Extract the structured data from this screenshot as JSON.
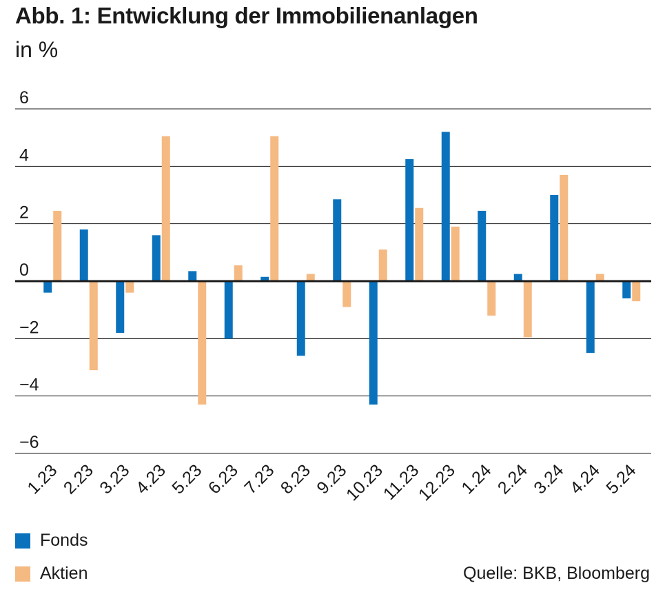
{
  "title": "Abb. 1: Entwicklung der Immobilienanlagen",
  "subtitle": "in %",
  "source": "Quelle: BKB, Bloomberg",
  "colors": {
    "fonds": "#0a72bd",
    "aktien": "#f5b982",
    "grid": "#1a1a1a"
  },
  "chart_data": {
    "type": "bar",
    "categories": [
      "1.23",
      "2.23",
      "3.23",
      "4.23",
      "5.23",
      "6.23",
      "7.23",
      "8.23",
      "9.23",
      "10.23",
      "11.23",
      "12.23",
      "1.24",
      "2.24",
      "3.24",
      "4.24",
      "5.24"
    ],
    "series": [
      {
        "name": "Fonds",
        "values": [
          -0.4,
          1.8,
          -1.8,
          1.6,
          0.35,
          -2.0,
          0.15,
          -2.6,
          2.85,
          -4.3,
          4.25,
          5.2,
          2.45,
          0.25,
          3.0,
          -2.5,
          -0.6
        ]
      },
      {
        "name": "Aktien",
        "values": [
          2.45,
          -3.1,
          -0.4,
          5.05,
          -4.3,
          0.55,
          5.05,
          0.25,
          -0.9,
          1.1,
          2.55,
          1.9,
          -1.2,
          -1.95,
          3.7,
          0.25,
          -0.7
        ]
      }
    ],
    "yticks": [
      6,
      4,
      2,
      0,
      -2,
      -4,
      -6
    ],
    "ytick_labels": [
      "6",
      "4",
      "2",
      "0",
      "−2",
      "−4",
      "−6"
    ],
    "ylim": [
      -6,
      6
    ],
    "grid": true,
    "legend": "bottom-left"
  }
}
